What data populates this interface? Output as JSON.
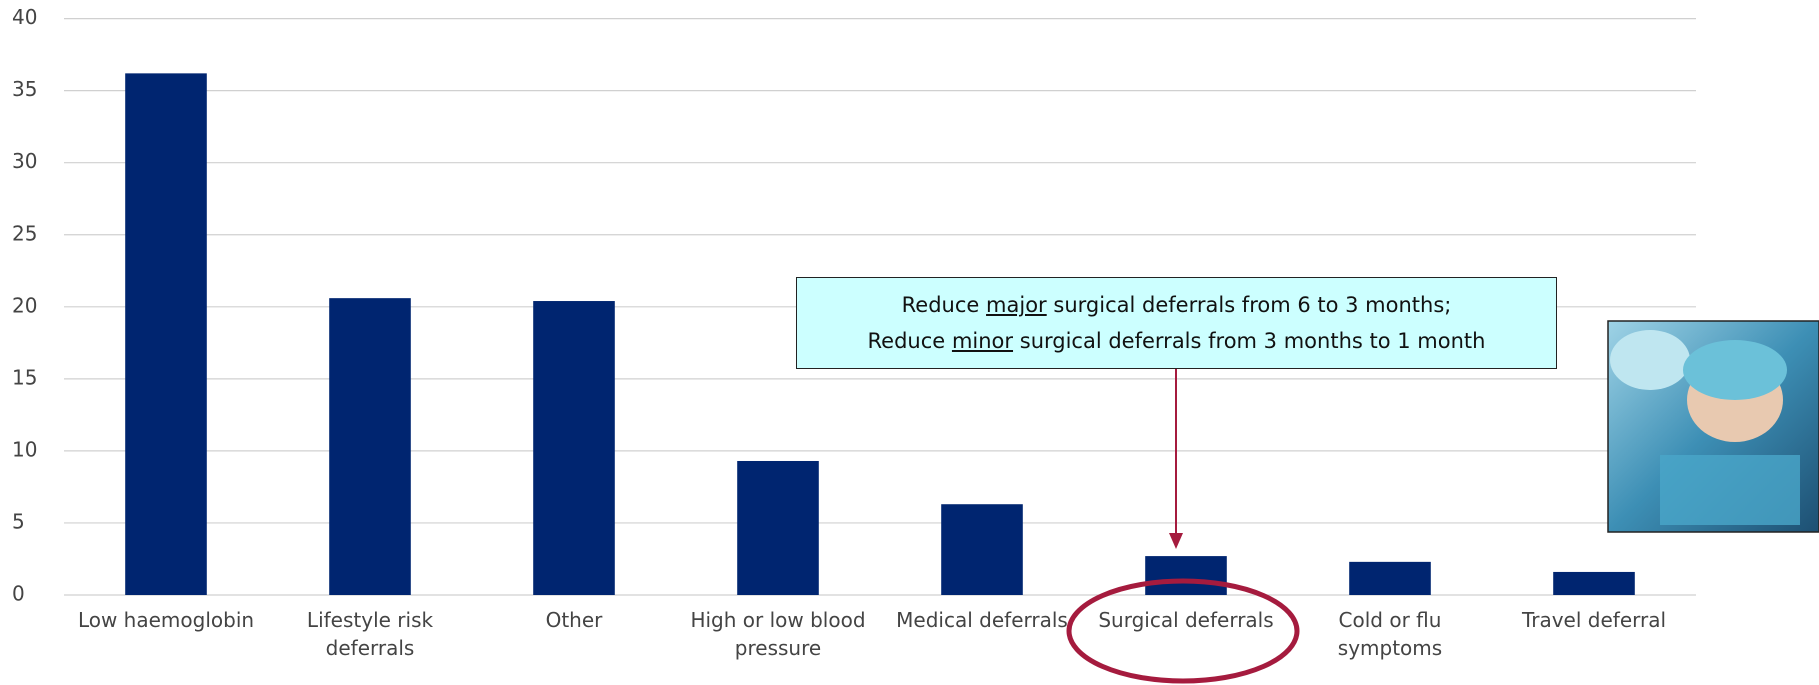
{
  "chart_data": {
    "type": "bar",
    "categories": [
      "Low haemoglobin",
      "Lifestyle risk deferrals",
      "Other",
      "High or low blood pressure",
      "Medical deferrals",
      "Surgical deferrals",
      "Cold or flu symptoms",
      "Travel deferral"
    ],
    "values": [
      36.2,
      20.6,
      20.4,
      9.3,
      6.3,
      2.7,
      2.3,
      1.6
    ],
    "color": "#002570",
    "ylim": [
      0,
      40
    ],
    "yticks": [
      0,
      5,
      10,
      15,
      20,
      25,
      30,
      35,
      40
    ],
    "grid": true,
    "annotation": {
      "lines": [
        [
          "Reduce",
          "major",
          "surgical deferrals from 6 to 3 months;"
        ],
        [
          "Reduce",
          "minor",
          "surgical deferrals from 3 months to 1 month"
        ]
      ]
    }
  }
}
